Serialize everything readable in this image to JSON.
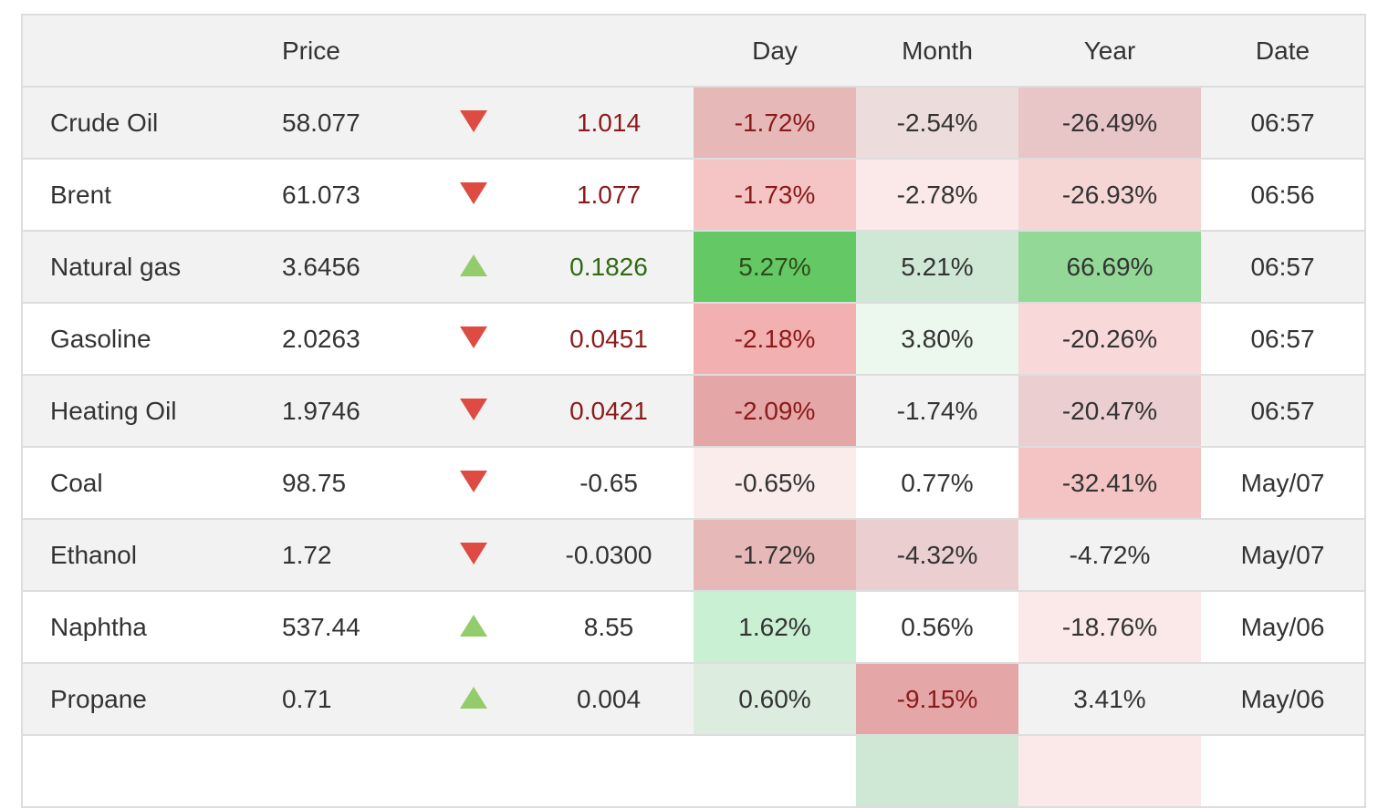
{
  "header": {
    "name": "",
    "price": "Price",
    "arrow": "",
    "change": "",
    "day": "Day",
    "month": "Month",
    "year": "Year",
    "date": "Date"
  },
  "rows": [
    {
      "name": "Crude Oil",
      "price": "58.077",
      "direction": "down",
      "change": "1.014",
      "change_color": "red",
      "day": "-1.72%",
      "day_bg": "#e6b8b8",
      "month": "-2.54%",
      "month_bg": "#eddcdc",
      "year": "-26.49%",
      "year_bg": "#e8c6c8",
      "date": "06:57"
    },
    {
      "name": "Brent",
      "price": "61.073",
      "direction": "down",
      "change": "1.077",
      "change_color": "red",
      "day": "-1.73%",
      "day_bg": "#f5c4c4",
      "month": "-2.78%",
      "month_bg": "#fbe9e9",
      "year": "-26.93%",
      "year_bg": "#f6d5d5",
      "date": "06:56"
    },
    {
      "name": "Natural gas",
      "price": "3.6456",
      "direction": "up",
      "change": "0.1826",
      "change_color": "green",
      "day": "5.27%",
      "day_bg": "#64c864",
      "month": "5.21%",
      "month_bg": "#cfe8d5",
      "year": "66.69%",
      "year_bg": "#94d898",
      "date": "06:57"
    },
    {
      "name": "Gasoline",
      "price": "2.0263",
      "direction": "down",
      "change": "0.0451",
      "change_color": "red",
      "day": "-2.18%",
      "day_bg": "#f2b0b0",
      "month": "3.80%",
      "month_bg": "#ecf8ee",
      "year": "-20.26%",
      "year_bg": "#f8d8d8",
      "date": "06:57"
    },
    {
      "name": "Heating Oil",
      "price": "1.9746",
      "direction": "down",
      "change": "0.0421",
      "change_color": "red",
      "day": "-2.09%",
      "day_bg": "#e4a6a6",
      "month": "-1.74%",
      "month_bg": "#f2f2f2",
      "year": "-20.47%",
      "year_bg": "#ebcfd0",
      "date": "06:57"
    },
    {
      "name": "Coal",
      "price": "98.75",
      "direction": "down",
      "change": "-0.65",
      "change_color": "plain",
      "day": "-0.65%",
      "day_bg": "#fbecec",
      "month": "0.77%",
      "month_bg": "#ffffff",
      "year": "-32.41%",
      "year_bg": "#f4c4c4",
      "date": "May/07"
    },
    {
      "name": "Ethanol",
      "price": "1.72",
      "direction": "down",
      "change": "-0.0300",
      "change_color": "plain",
      "day": "-1.72%",
      "day_bg": "#e6b8b8",
      "month": "-4.32%",
      "month_bg": "#ebcfd0",
      "year": "-4.72%",
      "year_bg": "#f2f2f2",
      "date": "May/07"
    },
    {
      "name": "Naphtha",
      "price": "537.44",
      "direction": "up",
      "change": "8.55",
      "change_color": "plain",
      "day": "1.62%",
      "day_bg": "#c9f0d3",
      "month": "0.56%",
      "month_bg": "#ffffff",
      "year": "-18.76%",
      "year_bg": "#fbe9e9",
      "date": "May/06"
    },
    {
      "name": "Propane",
      "price": "0.71",
      "direction": "up",
      "change": "0.004",
      "change_color": "plain",
      "day": "0.60%",
      "day_bg": "#dcecdf",
      "month": "-9.15%",
      "month_bg": "#e4a6a6",
      "year": "3.41%",
      "year_bg": "#f2f2f2",
      "date": "May/06"
    },
    {
      "name": "",
      "price": "",
      "direction": "",
      "change": "",
      "change_color": "plain",
      "day": "",
      "day_bg": "#ffffff",
      "month": "",
      "month_bg": "#cfe8d5",
      "year": "",
      "year_bg": "#fbe9e9",
      "date": ""
    }
  ]
}
